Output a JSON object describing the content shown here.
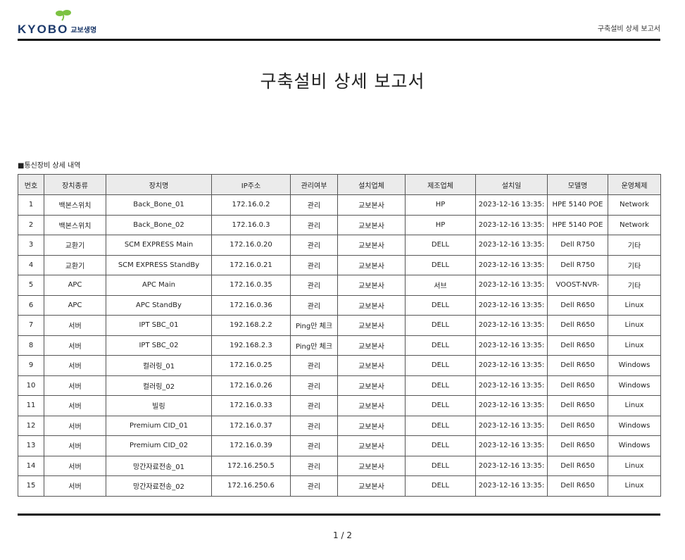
{
  "header": {
    "logo_text": "KYOBO",
    "logo_kor": "교보생명",
    "title": "구축설비 상세 보고서",
    "brand_color": "#1d3a6b",
    "logo_leaf_color": "#7cc242"
  },
  "doc_title": "구축설비 상세 보고서",
  "section_label": "■통신장비 상세 내역",
  "table": {
    "columns": [
      "번호",
      "장치종류",
      "장치명",
      "IP주소",
      "관리여부",
      "설치업체",
      "제조업체",
      "설치일",
      "모델명",
      "운영체제"
    ],
    "rows": [
      [
        "1",
        "백본스위치",
        "Back_Bone_01",
        "172.16.0.2",
        "관리",
        "교보본사",
        "HP",
        "2023-12-16 13:35:",
        "HPE 5140 POE",
        "Network"
      ],
      [
        "2",
        "백본스위치",
        "Back_Bone_02",
        "172.16.0.3",
        "관리",
        "교보본사",
        "HP",
        "2023-12-16 13:35:",
        "HPE 5140 POE",
        "Network"
      ],
      [
        "3",
        "교환기",
        "SCM EXPRESS Main",
        "172.16.0.20",
        "관리",
        "교보본사",
        "DELL",
        "2023-12-16 13:35:",
        "Dell R750",
        "기타"
      ],
      [
        "4",
        "교환기",
        "SCM EXPRESS StandBy",
        "172.16.0.21",
        "관리",
        "교보본사",
        "DELL",
        "2023-12-16 13:35:",
        "Dell R750",
        "기타"
      ],
      [
        "5",
        "APC",
        "APC Main",
        "172.16.0.35",
        "관리",
        "교보본사",
        "서브",
        "2023-12-16 13:35:",
        "VOOST-NVR-",
        "기타"
      ],
      [
        "6",
        "APC",
        "APC StandBy",
        "172.16.0.36",
        "관리",
        "교보본사",
        "DELL",
        "2023-12-16 13:35:",
        "Dell R650",
        "Linux"
      ],
      [
        "7",
        "서버",
        "IPT SBC_01",
        "192.168.2.2",
        "Ping만 체크",
        "교보본사",
        "DELL",
        "2023-12-16 13:35:",
        "Dell R650",
        "Linux"
      ],
      [
        "8",
        "서버",
        "IPT SBC_02",
        "192.168.2.3",
        "Ping만 체크",
        "교보본사",
        "DELL",
        "2023-12-16 13:35:",
        "Dell R650",
        "Linux"
      ],
      [
        "9",
        "서버",
        "컬러링_01",
        "172.16.0.25",
        "관리",
        "교보본사",
        "DELL",
        "2023-12-16 13:35:",
        "Dell R650",
        "Windows"
      ],
      [
        "10",
        "서버",
        "컬러링_02",
        "172.16.0.26",
        "관리",
        "교보본사",
        "DELL",
        "2023-12-16 13:35:",
        "Dell R650",
        "Windows"
      ],
      [
        "11",
        "서버",
        "빌링",
        "172.16.0.33",
        "관리",
        "교보본사",
        "DELL",
        "2023-12-16 13:35:",
        "Dell R650",
        "Linux"
      ],
      [
        "12",
        "서버",
        "Premium CID_01",
        "172.16.0.37",
        "관리",
        "교보본사",
        "DELL",
        "2023-12-16 13:35:",
        "Dell R650",
        "Windows"
      ],
      [
        "13",
        "서버",
        "Premium CID_02",
        "172.16.0.39",
        "관리",
        "교보본사",
        "DELL",
        "2023-12-16 13:35:",
        "Dell R650",
        "Windows"
      ],
      [
        "14",
        "서버",
        "망간자료전송_01",
        "172.16.250.5",
        "관리",
        "교보본사",
        "DELL",
        "2023-12-16 13:35:",
        "Dell R650",
        "Linux"
      ],
      [
        "15",
        "서버",
        "망간자료전송_02",
        "172.16.250.6",
        "관리",
        "교보본사",
        "DELL",
        "2023-12-16 13:35:",
        "Dell R650",
        "Linux"
      ]
    ]
  },
  "footer": {
    "page": "1  /  2"
  }
}
